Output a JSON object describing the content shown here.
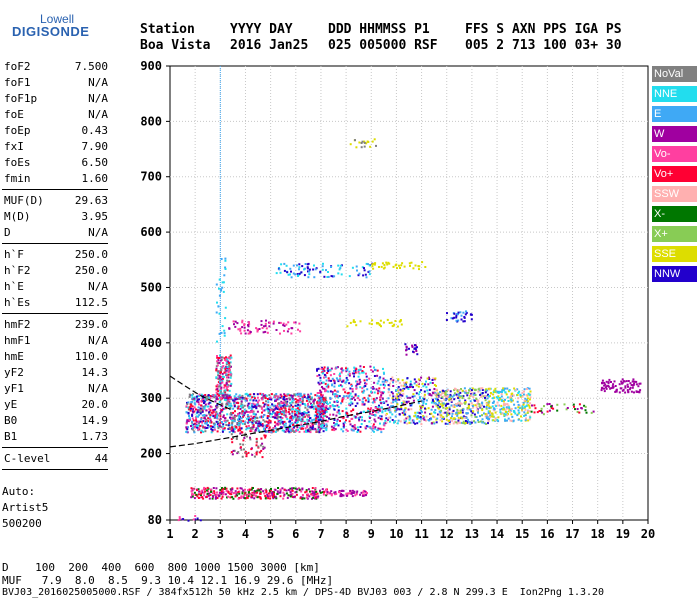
{
  "logo": {
    "brand_top": "Lowell",
    "brand_bottom": "DIGISONDE"
  },
  "header": {
    "labels": [
      "Station",
      "YYYY DAY",
      "DDD HHMMSS P1",
      "FFS S AXN PPS IGA PS"
    ],
    "values": [
      "Boa Vista",
      "2016 Jan25",
      "025 005000 RSF",
      "005 2 713 100 03+ 30"
    ]
  },
  "params_groups": [
    [
      [
        "foF2",
        "7.500"
      ],
      [
        "foF1",
        "N/A"
      ],
      [
        "foF1p",
        "N/A"
      ],
      [
        "foE",
        "N/A"
      ],
      [
        "foEp",
        "0.43"
      ],
      [
        "fxI",
        "7.90"
      ],
      [
        "foEs",
        "6.50"
      ],
      [
        "fmin",
        "1.60"
      ]
    ],
    [
      [
        "MUF(D)",
        "29.63"
      ],
      [
        "M(D)",
        "3.95"
      ],
      [
        "D",
        "N/A"
      ]
    ],
    [
      [
        "h`F",
        "250.0"
      ],
      [
        "h`F2",
        "250.0"
      ],
      [
        "h`E",
        "N/A"
      ],
      [
        "h`Es",
        "112.5"
      ]
    ],
    [
      [
        "hmF2",
        "239.0"
      ],
      [
        "hmF1",
        "N/A"
      ],
      [
        "hmE",
        "110.0"
      ],
      [
        "yF2",
        "14.3"
      ],
      [
        "yF1",
        "N/A"
      ],
      [
        "yE",
        "20.0"
      ],
      [
        "B0",
        "14.9"
      ],
      [
        "B1",
        "1.73"
      ]
    ],
    [
      [
        "C-level",
        "44"
      ]
    ]
  ],
  "notes": [
    "Auto:",
    "Artist5",
    "500200"
  ],
  "legend": [
    {
      "label": "NoVal",
      "color": "#808080"
    },
    {
      "label": "NNE",
      "color": "#22ddee"
    },
    {
      "label": "E",
      "color": "#3fa9f5"
    },
    {
      "label": "W",
      "color": "#a000a0"
    },
    {
      "label": "Vo-",
      "color": "#ff3fa0"
    },
    {
      "label": "Vo+",
      "color": "#ff0033"
    },
    {
      "label": "SSW",
      "color": "#ffb0b0"
    },
    {
      "label": "X-",
      "color": "#007700"
    },
    {
      "label": "X+",
      "color": "#88cc55"
    },
    {
      "label": "SSE",
      "color": "#dddd00"
    },
    {
      "label": "NNW",
      "color": "#2200cc"
    }
  ],
  "footer": {
    "d_row": "D    100  200  400  600  800 1000 1500 3000 [km]",
    "muf_row": "MUF   7.9  8.0  8.5  9.3 10.4 12.1 16.9 29.6 [MHz]",
    "file_row": "BVJ03_2016025005000.RSF / 384fx512h 50 kHz 2.5 km / DPS-4D BVJ03 003 / 2.8 N 299.3 E  Ion2Png 1.3.20"
  },
  "chart_data": {
    "type": "scatter",
    "xlim": [
      1,
      20
    ],
    "ylim": [
      80,
      900
    ],
    "x_ticks": [
      1,
      2,
      3,
      4,
      5,
      6,
      7,
      8,
      9,
      10,
      11,
      12,
      13,
      14,
      15,
      16,
      17,
      18,
      19,
      20
    ],
    "y_ticks": [
      80,
      200,
      300,
      400,
      500,
      600,
      700,
      800,
      900
    ],
    "grid": true,
    "legend_position": "right",
    "clusters": [
      {
        "xr": [
          1.6,
          7.2
        ],
        "yr": [
          240,
          310
        ],
        "n": 1300,
        "colors": [
          "#22ddee",
          "#3fa9f5",
          "#2200cc",
          "#a000a0",
          "#ff3fa0",
          "#808080",
          "#ff0033"
        ]
      },
      {
        "xr": [
          2.8,
          3.4
        ],
        "yr": [
          300,
          380
        ],
        "n": 180,
        "colors": [
          "#ff3fa0",
          "#ff0033",
          "#a000a0",
          "#808080",
          "#22ddee"
        ]
      },
      {
        "xr": [
          6.8,
          9.5
        ],
        "yr": [
          240,
          360
        ],
        "n": 520,
        "colors": [
          "#a000a0",
          "#ff3fa0",
          "#ff0033",
          "#2200cc",
          "#22ddee",
          "#3fa9f5"
        ]
      },
      {
        "xr": [
          9.5,
          11.6
        ],
        "yr": [
          255,
          340
        ],
        "n": 320,
        "colors": [
          "#2200cc",
          "#3fa9f5",
          "#22ddee",
          "#ffb0b0",
          "#a000a0",
          "#dddd00"
        ]
      },
      {
        "xr": [
          11.5,
          13.6
        ],
        "yr": [
          255,
          320
        ],
        "n": 360,
        "colors": [
          "#dddd00",
          "#88cc55",
          "#3fa9f5",
          "#ffb0b0",
          "#2200cc"
        ]
      },
      {
        "xr": [
          13.6,
          15.3
        ],
        "yr": [
          260,
          320
        ],
        "n": 260,
        "colors": [
          "#dddd00",
          "#ffb0b0",
          "#3fa9f5",
          "#22ddee"
        ]
      },
      {
        "xr": [
          15.3,
          17.8
        ],
        "yr": [
          272,
          292
        ],
        "n": 40,
        "colors": [
          "#007700",
          "#88cc55",
          "#ff0033",
          "#a000a0"
        ]
      },
      {
        "xr": [
          18.1,
          19.7
        ],
        "yr": [
          312,
          336
        ],
        "n": 80,
        "colors": [
          "#a000a0"
        ]
      },
      {
        "xr": [
          1.8,
          7.2
        ],
        "yr": [
          120,
          140
        ],
        "n": 350,
        "colors": [
          "#ff3fa0",
          "#a000a0",
          "#007700",
          "#ff0033"
        ]
      },
      {
        "xr": [
          7.2,
          8.8
        ],
        "yr": [
          125,
          135
        ],
        "n": 60,
        "colors": [
          "#ff3fa0",
          "#a000a0"
        ]
      },
      {
        "xr": [
          3.2,
          6.2
        ],
        "yr": [
          418,
          442
        ],
        "n": 70,
        "colors": [
          "#a000a0",
          "#ff3fa0"
        ]
      },
      {
        "xr": [
          5.2,
          9.0
        ],
        "yr": [
          520,
          545
        ],
        "n": 90,
        "colors": [
          "#22ddee",
          "#3fa9f5",
          "#2200cc"
        ]
      },
      {
        "xr": [
          9.0,
          11.2
        ],
        "yr": [
          535,
          548
        ],
        "n": 35,
        "colors": [
          "#dddd00"
        ]
      },
      {
        "xr": [
          8.0,
          10.2
        ],
        "yr": [
          430,
          444
        ],
        "n": 30,
        "colors": [
          "#dddd00"
        ]
      },
      {
        "xr": [
          11.8,
          13.1
        ],
        "yr": [
          440,
          460
        ],
        "n": 30,
        "colors": [
          "#2200cc",
          "#3fa9f5"
        ]
      },
      {
        "xr": [
          2.8,
          3.2
        ],
        "yr": [
          400,
          560
        ],
        "n": 30,
        "colors": [
          "#3fa9f5",
          "#22ddee"
        ]
      },
      {
        "xr": [
          3.4,
          4.8
        ],
        "yr": [
          195,
          240
        ],
        "n": 60,
        "colors": [
          "#ff0033",
          "#a000a0",
          "#808080"
        ]
      },
      {
        "xr": [
          8.0,
          9.2
        ],
        "yr": [
          755,
          770
        ],
        "n": 18,
        "colors": [
          "#dddd00",
          "#808080"
        ]
      },
      {
        "xr": [
          1.3,
          2.2
        ],
        "yr": [
          80,
          90
        ],
        "n": 12,
        "colors": [
          "#2200cc",
          "#ff3fa0"
        ]
      },
      {
        "xr": [
          10.3,
          10.8
        ],
        "yr": [
          380,
          400
        ],
        "n": 20,
        "colors": [
          "#2200cc",
          "#a000a0"
        ]
      }
    ],
    "vline_x": 3.0,
    "vline_yr": [
      250,
      900
    ],
    "curve_points": [
      [
        1,
        212
      ],
      [
        2,
        218
      ],
      [
        3,
        226
      ],
      [
        4,
        234
      ],
      [
        5,
        242
      ],
      [
        6,
        250
      ],
      [
        7,
        258
      ],
      [
        8,
        268
      ],
      [
        9,
        276
      ],
      [
        10,
        285
      ],
      [
        11,
        295
      ]
    ],
    "curve2_points": [
      [
        1,
        340
      ],
      [
        1.6,
        322
      ],
      [
        2.2,
        305
      ],
      [
        2.8,
        292
      ],
      [
        3.4,
        280
      ]
    ]
  }
}
